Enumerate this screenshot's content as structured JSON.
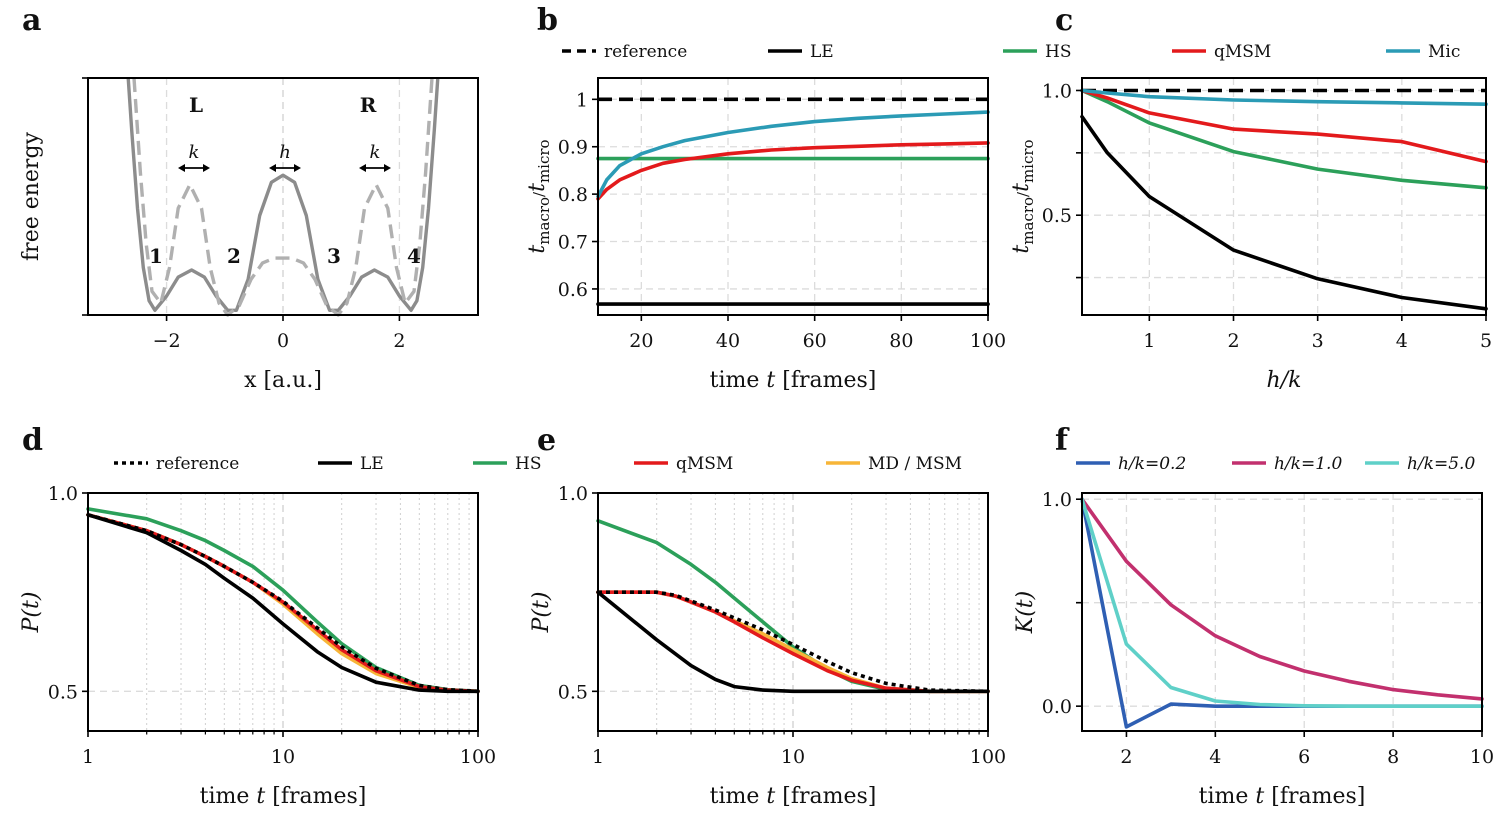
{
  "figure": {
    "panel_letters": [
      "a",
      "b",
      "c",
      "d",
      "e",
      "f"
    ]
  },
  "chart_data": [
    {
      "panel": "a",
      "type": "line",
      "xlabel": "x [a.u.]",
      "ylabel": "free energy",
      "xlim": [
        -3.35,
        3.35
      ],
      "ylim": [
        0,
        1
      ],
      "xticks": [
        "−2",
        "0",
        "2"
      ],
      "xtick_values": [
        -2,
        0,
        2
      ],
      "annotations": [
        "L",
        "R",
        "1",
        "2",
        "3",
        "4",
        "k",
        "h",
        "k"
      ],
      "series": [
        {
          "name": "",
          "style": "solid",
          "color": "#8c8c8c",
          "x": [
            -2.66,
            -2.6,
            -2.5,
            -2.4,
            -2.3,
            -2.2,
            -2.0,
            -1.8,
            -1.57,
            -1.35,
            -1.15,
            -0.95,
            -0.8,
            -0.6,
            -0.4,
            -0.2,
            0,
            0.2,
            0.4,
            0.6,
            0.8,
            0.95,
            1.15,
            1.35,
            1.57,
            1.8,
            2.0,
            2.2,
            2.3,
            2.4,
            2.5,
            2.6,
            2.66
          ],
          "y": [
            1.0,
            0.78,
            0.45,
            0.2,
            0.06,
            0.02,
            0.08,
            0.16,
            0.19,
            0.16,
            0.08,
            0.02,
            0.02,
            0.15,
            0.42,
            0.56,
            0.59,
            0.56,
            0.42,
            0.15,
            0.02,
            0.02,
            0.08,
            0.16,
            0.19,
            0.16,
            0.08,
            0.02,
            0.06,
            0.2,
            0.45,
            0.78,
            1.0
          ]
        },
        {
          "name": "",
          "style": "dashed",
          "color": "#b0b0b0",
          "x": [
            -2.56,
            -2.45,
            -2.35,
            -2.25,
            -2.1,
            -1.95,
            -1.8,
            -1.6,
            -1.4,
            -1.25,
            -1.1,
            -0.95,
            -0.75,
            -0.55,
            -0.35,
            -0.15,
            0,
            0.15,
            0.35,
            0.55,
            0.75,
            0.95,
            1.1,
            1.25,
            1.4,
            1.6,
            1.8,
            1.95,
            2.1,
            2.25,
            2.35,
            2.45,
            2.56
          ],
          "y": [
            1.0,
            0.6,
            0.3,
            0.1,
            0.05,
            0.2,
            0.45,
            0.55,
            0.45,
            0.2,
            0.05,
            0.0,
            0.04,
            0.15,
            0.22,
            0.24,
            0.24,
            0.24,
            0.22,
            0.15,
            0.04,
            0.0,
            0.05,
            0.2,
            0.45,
            0.55,
            0.45,
            0.2,
            0.05,
            0.1,
            0.3,
            0.6,
            1.0
          ]
        }
      ]
    },
    {
      "panel": "b",
      "type": "line",
      "xlabel": "time t [frames]",
      "ylabel": "t_macro / t_micro",
      "xlim": [
        10,
        100
      ],
      "ylim": [
        0.545,
        1.045
      ],
      "xticks": [
        "20",
        "40",
        "60",
        "80",
        "100"
      ],
      "xtick_values": [
        20,
        40,
        60,
        80,
        100
      ],
      "yticks": [
        "0.6",
        "0.7",
        "0.8",
        "0.9",
        "1"
      ],
      "ytick_values": [
        0.6,
        0.7,
        0.8,
        0.9,
        1.0
      ],
      "legend": [
        "reference",
        "LE",
        "HS",
        "qMSM",
        "Mic"
      ],
      "series": [
        {
          "name": "reference",
          "style": "dashed",
          "color": "#000000",
          "x": [
            10,
            100
          ],
          "y": [
            1.0,
            1.0
          ]
        },
        {
          "name": "LE",
          "color": "#000000",
          "x": [
            10,
            100
          ],
          "y": [
            0.568,
            0.568
          ]
        },
        {
          "name": "HS",
          "color": "#2ca05a",
          "x": [
            10,
            100
          ],
          "y": [
            0.875,
            0.875
          ]
        },
        {
          "name": "qMSM",
          "color": "#e31a1c",
          "x": [
            10,
            12,
            15,
            20,
            25,
            30,
            40,
            50,
            60,
            70,
            80,
            90,
            100
          ],
          "y": [
            0.79,
            0.81,
            0.83,
            0.85,
            0.865,
            0.873,
            0.885,
            0.893,
            0.898,
            0.901,
            0.904,
            0.906,
            0.908
          ]
        },
        {
          "name": "Mic",
          "color": "#2b9bb5",
          "x": [
            10,
            12,
            15,
            20,
            25,
            30,
            40,
            50,
            60,
            70,
            80,
            90,
            100
          ],
          "y": [
            0.795,
            0.83,
            0.86,
            0.885,
            0.9,
            0.913,
            0.93,
            0.943,
            0.953,
            0.96,
            0.965,
            0.969,
            0.973
          ]
        }
      ]
    },
    {
      "panel": "c",
      "type": "line",
      "xlabel": "h/k",
      "ylabel": "t_macro / t_micro",
      "xlim": [
        0.2,
        5
      ],
      "ylim": [
        0.1,
        1.05
      ],
      "xticks": [
        "1",
        "2",
        "3",
        "4",
        "5"
      ],
      "xtick_values": [
        1,
        2,
        3,
        4,
        5
      ],
      "yticks": [
        "0.5",
        "1.0"
      ],
      "ytick_values": [
        0.5,
        1.0
      ],
      "series": [
        {
          "name": "reference",
          "style": "dashed",
          "color": "#000000",
          "x": [
            0.2,
            5
          ],
          "y": [
            1.0,
            1.0
          ]
        },
        {
          "name": "LE",
          "color": "#000000",
          "x": [
            0.2,
            0.5,
            1,
            2,
            3,
            4,
            5
          ],
          "y": [
            0.895,
            0.75,
            0.575,
            0.36,
            0.245,
            0.17,
            0.125
          ]
        },
        {
          "name": "HS",
          "color": "#2ca05a",
          "x": [
            0.2,
            0.5,
            1,
            2,
            3,
            4,
            5
          ],
          "y": [
            1.0,
            0.955,
            0.87,
            0.755,
            0.685,
            0.64,
            0.61
          ]
        },
        {
          "name": "qMSM",
          "color": "#e31a1c",
          "x": [
            0.2,
            0.5,
            1,
            2,
            3,
            4,
            5
          ],
          "y": [
            1.0,
            0.97,
            0.91,
            0.845,
            0.825,
            0.795,
            0.715
          ]
        },
        {
          "name": "Mic",
          "color": "#2b9bb5",
          "x": [
            0.2,
            0.5,
            1,
            2,
            3,
            4,
            5
          ],
          "y": [
            1.0,
            0.99,
            0.975,
            0.962,
            0.955,
            0.95,
            0.945
          ]
        }
      ]
    },
    {
      "panel": "d",
      "type": "line",
      "xscale": "log",
      "xlabel": "time t [frames]",
      "ylabel": "P(t)",
      "xlim": [
        1,
        100
      ],
      "ylim": [
        0.4,
        1.0
      ],
      "xticks": [
        "1",
        "10",
        "100"
      ],
      "xtick_values": [
        1,
        10,
        100
      ],
      "yticks": [
        "0.5",
        "1.0"
      ],
      "ytick_values": [
        0.5,
        1.0
      ],
      "legend": [
        "reference",
        "LE",
        "HS",
        "qMSM",
        "MD / MSM"
      ],
      "series": [
        {
          "name": "HS",
          "color": "#2ca05a",
          "x": [
            1,
            2,
            3,
            4,
            5,
            7,
            10,
            15,
            20,
            30,
            50,
            70,
            100
          ],
          "y": [
            0.96,
            0.935,
            0.905,
            0.88,
            0.855,
            0.815,
            0.755,
            0.675,
            0.62,
            0.56,
            0.515,
            0.504,
            0.5
          ]
        },
        {
          "name": "MD / MSM",
          "color": "#f7b538",
          "x": [
            1,
            2,
            3,
            4,
            5,
            7,
            10,
            15,
            20,
            30,
            50,
            70,
            100
          ],
          "y": [
            0.945,
            0.905,
            0.87,
            0.84,
            0.815,
            0.775,
            0.72,
            0.645,
            0.595,
            0.545,
            0.51,
            0.502,
            0.5
          ]
        },
        {
          "name": "qMSM",
          "color": "#e31a1c",
          "x": [
            1,
            2,
            3,
            4,
            5,
            7,
            10,
            15,
            20,
            30,
            50,
            70,
            100
          ],
          "y": [
            0.945,
            0.905,
            0.87,
            0.84,
            0.815,
            0.775,
            0.725,
            0.655,
            0.605,
            0.552,
            0.512,
            0.503,
            0.5
          ]
        },
        {
          "name": "LE",
          "color": "#000000",
          "x": [
            1,
            2,
            3,
            4,
            5,
            7,
            10,
            15,
            20,
            30,
            50,
            70,
            100
          ],
          "y": [
            0.945,
            0.9,
            0.855,
            0.82,
            0.785,
            0.735,
            0.67,
            0.6,
            0.56,
            0.523,
            0.503,
            0.5,
            0.5
          ]
        },
        {
          "name": "reference",
          "style": "dotted",
          "color": "#000000",
          "x": [
            1,
            2,
            3,
            4,
            5,
            7,
            10,
            15,
            20,
            30,
            50,
            70,
            100
          ],
          "y": [
            0.945,
            0.905,
            0.87,
            0.84,
            0.815,
            0.775,
            0.727,
            0.66,
            0.612,
            0.558,
            0.515,
            0.504,
            0.5
          ]
        }
      ]
    },
    {
      "panel": "e",
      "type": "line",
      "xscale": "log",
      "xlabel": "time t [frames]",
      "ylabel": "P(t)",
      "xlim": [
        1,
        100
      ],
      "ylim": [
        0.4,
        1.0
      ],
      "xticks": [
        "1",
        "10",
        "100"
      ],
      "xtick_values": [
        1,
        10,
        100
      ],
      "yticks": [
        "0.5",
        "1.0"
      ],
      "ytick_values": [
        0.5,
        1.0
      ],
      "series": [
        {
          "name": "HS",
          "color": "#2ca05a",
          "x": [
            1,
            2,
            3,
            4,
            5,
            7,
            10,
            15,
            20,
            30,
            50,
            100
          ],
          "y": [
            0.93,
            0.875,
            0.82,
            0.775,
            0.735,
            0.675,
            0.612,
            0.555,
            0.525,
            0.505,
            0.5,
            0.5
          ]
        },
        {
          "name": "MD / MSM",
          "color": "#f7b538",
          "x": [
            1,
            2,
            2.5,
            3,
            4,
            5,
            7,
            10,
            15,
            20,
            30,
            50,
            100
          ],
          "y": [
            0.75,
            0.75,
            0.74,
            0.725,
            0.7,
            0.678,
            0.645,
            0.605,
            0.56,
            0.532,
            0.508,
            0.5,
            0.5
          ]
        },
        {
          "name": "qMSM",
          "color": "#e31a1c",
          "x": [
            1,
            2,
            2.5,
            3,
            4,
            5,
            7,
            10,
            15,
            20,
            30,
            50,
            100
          ],
          "y": [
            0.75,
            0.75,
            0.74,
            0.725,
            0.7,
            0.675,
            0.635,
            0.595,
            0.552,
            0.528,
            0.508,
            0.5,
            0.5
          ]
        },
        {
          "name": "LE",
          "color": "#000000",
          "x": [
            1,
            2,
            3,
            4,
            5,
            7,
            10,
            15,
            20,
            30,
            50,
            100
          ],
          "y": [
            0.75,
            0.63,
            0.565,
            0.53,
            0.512,
            0.503,
            0.5,
            0.5,
            0.5,
            0.5,
            0.5,
            0.5
          ]
        },
        {
          "name": "reference",
          "style": "dotted",
          "color": "#000000",
          "x": [
            1,
            2,
            2.5,
            3,
            4,
            5,
            7,
            10,
            15,
            20,
            30,
            50,
            100
          ],
          "y": [
            0.75,
            0.75,
            0.742,
            0.728,
            0.705,
            0.685,
            0.655,
            0.618,
            0.575,
            0.547,
            0.52,
            0.503,
            0.5
          ]
        }
      ]
    },
    {
      "panel": "f",
      "type": "line",
      "xlabel": "time t [frames]",
      "ylabel": "K(t)",
      "xlim": [
        1,
        10
      ],
      "ylim": [
        -0.12,
        1.03
      ],
      "xticks": [
        "2",
        "4",
        "6",
        "8",
        "10"
      ],
      "xtick_values": [
        2,
        4,
        6,
        8,
        10
      ],
      "yticks": [
        "0.0",
        "1.0"
      ],
      "ytick_values": [
        0.0,
        1.0
      ],
      "legend": [
        "h/k=0.2",
        "h/k=1.0",
        "h/k=5.0"
      ],
      "series": [
        {
          "name": "h/k=0.2",
          "color": "#2f5fb3",
          "x": [
            1,
            2,
            3,
            4,
            5,
            6,
            7,
            8,
            9,
            10
          ],
          "y": [
            1.0,
            -0.1,
            0.01,
            0.0,
            0.0,
            0.0,
            0.0,
            0.0,
            0.0,
            0.0
          ]
        },
        {
          "name": "h/k=1.0",
          "color": "#c2306e",
          "x": [
            1,
            2,
            3,
            4,
            5,
            6,
            7,
            8,
            9,
            10
          ],
          "y": [
            1.0,
            0.7,
            0.49,
            0.34,
            0.24,
            0.17,
            0.12,
            0.08,
            0.055,
            0.035
          ]
        },
        {
          "name": "h/k=5.0",
          "color": "#5fd0c8",
          "x": [
            1,
            2,
            3,
            4,
            5,
            6,
            7,
            8,
            9,
            10
          ],
          "y": [
            1.0,
            0.3,
            0.09,
            0.025,
            0.008,
            0.002,
            0.0,
            0.0,
            0.0,
            0.0
          ]
        }
      ]
    }
  ]
}
